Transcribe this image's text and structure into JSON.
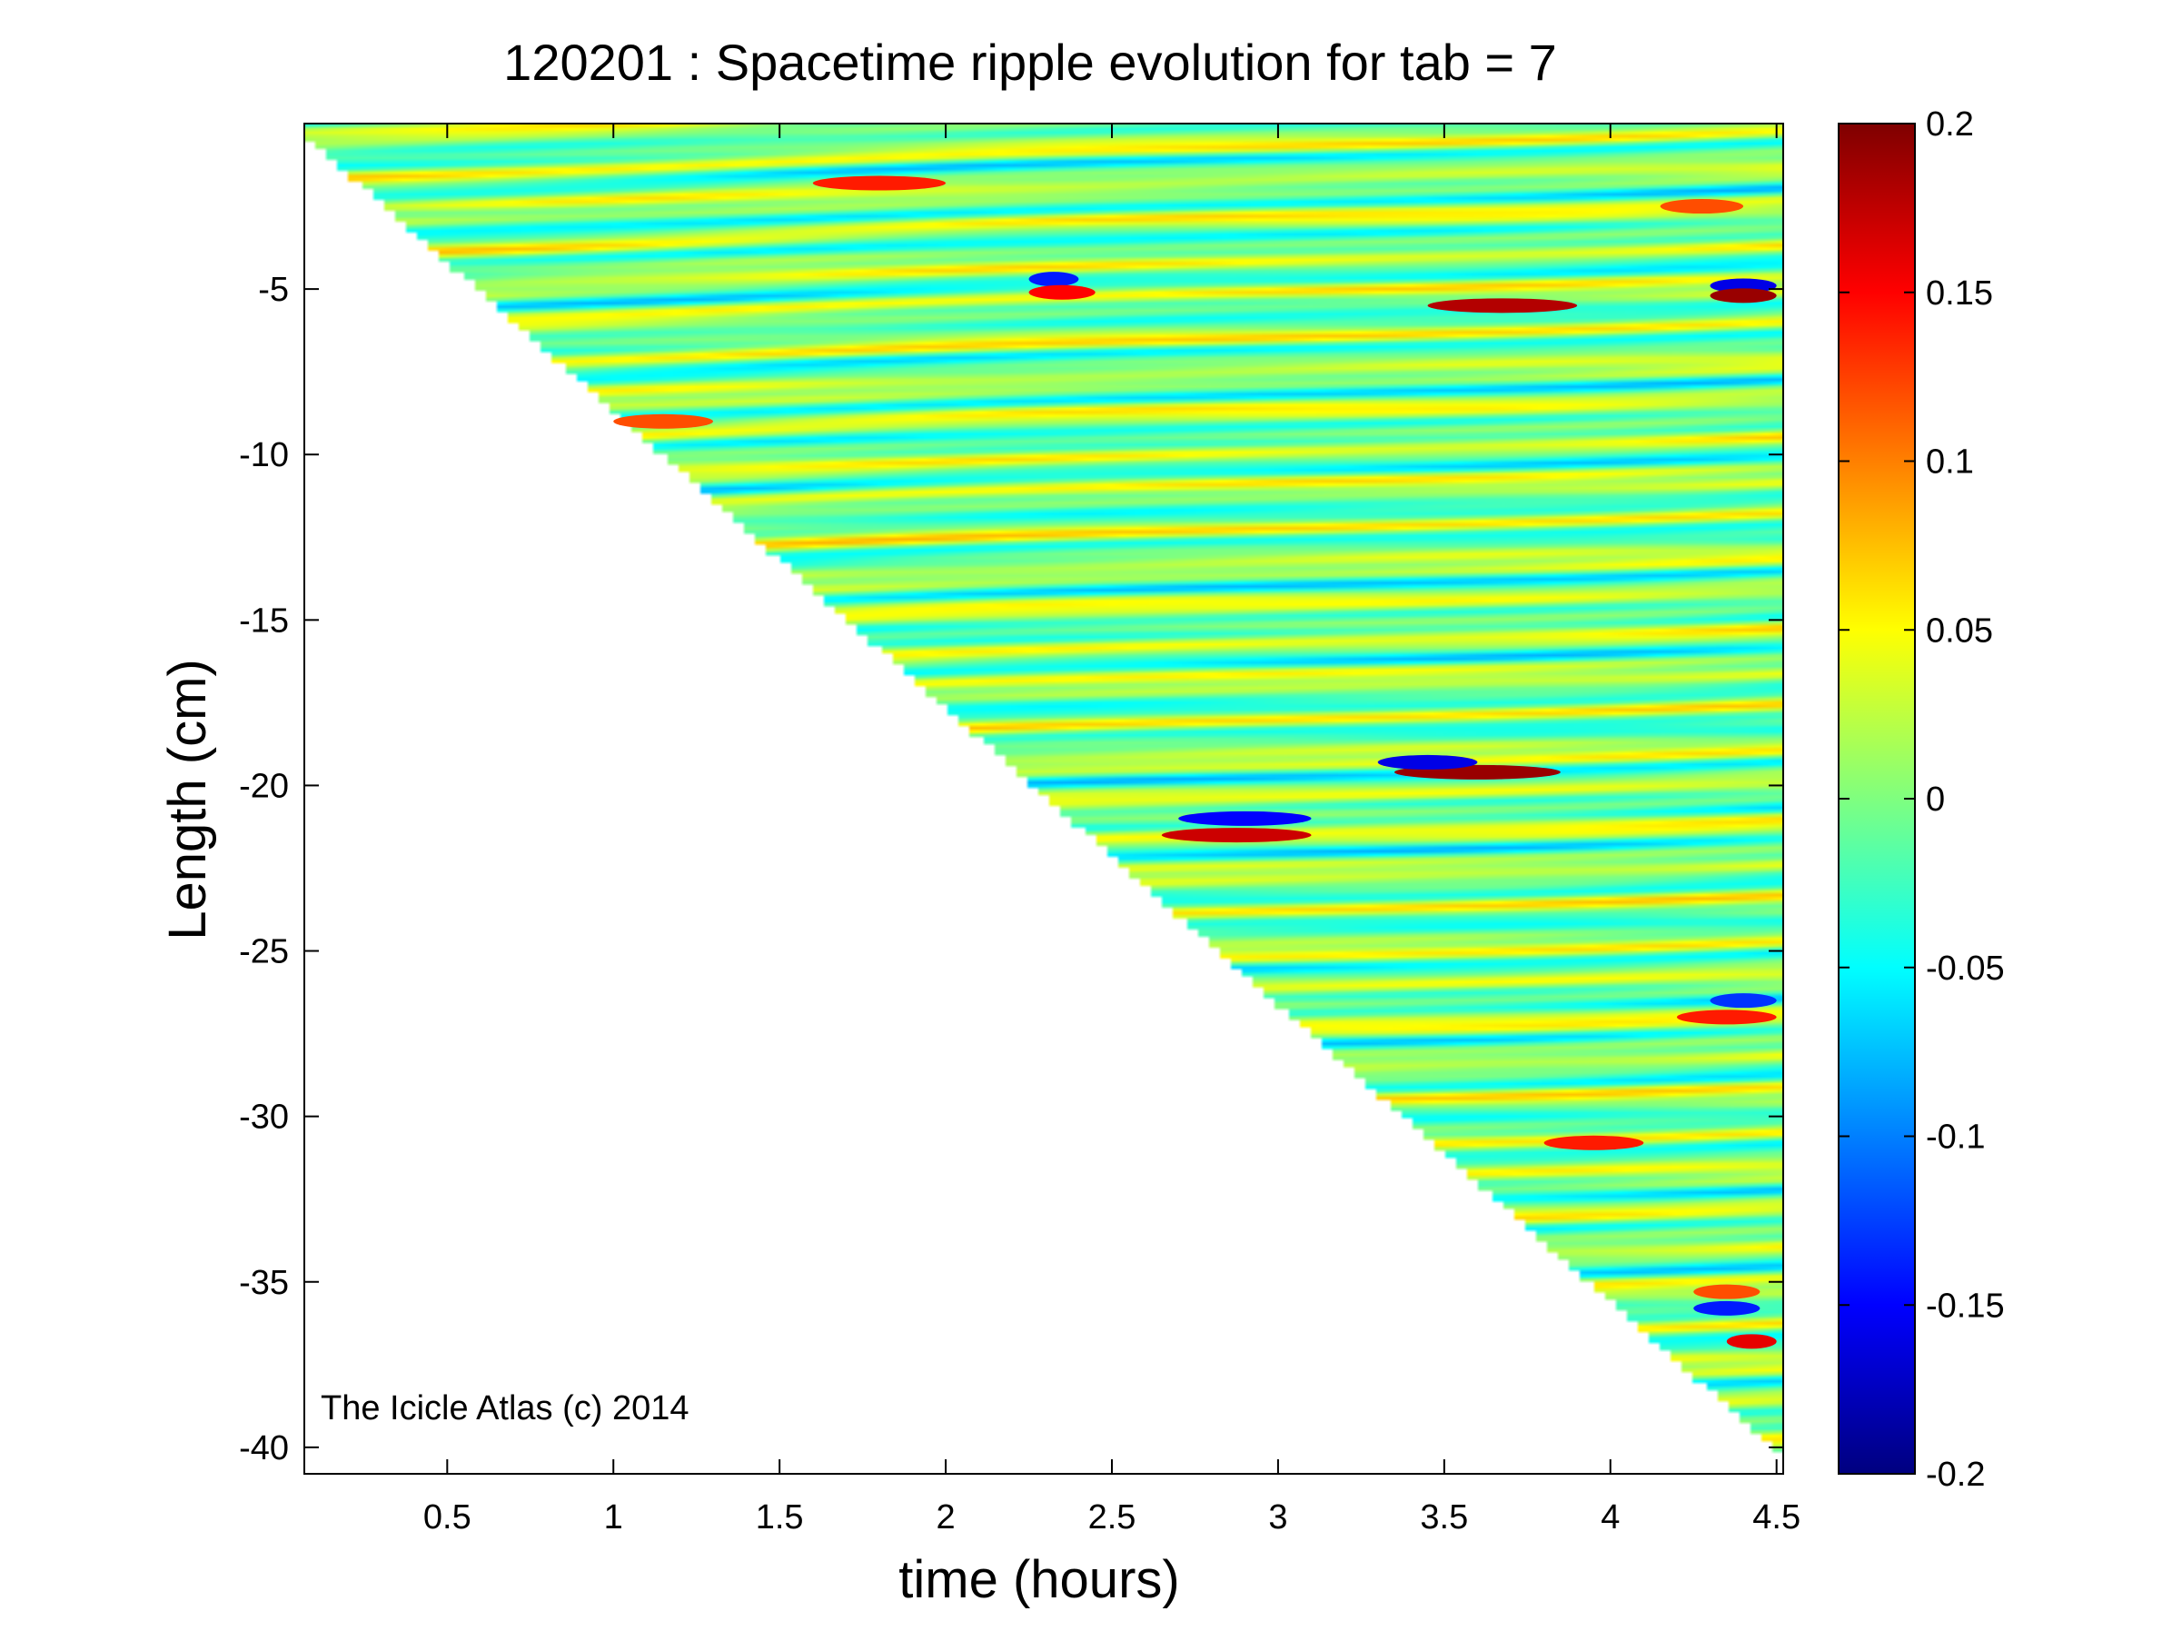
{
  "chart_data": {
    "type": "heatmap",
    "title": "120201 : Spacetime ripple evolution for tab = 7",
    "xlabel": "time (hours)",
    "ylabel": "Length (cm)",
    "xlim": [
      0.07,
      4.52
    ],
    "ylim": [
      -40.8,
      0.0
    ],
    "x_ticks": [
      0.5,
      1,
      1.5,
      2,
      2.5,
      3,
      3.5,
      4,
      4.5
    ],
    "x_tick_labels": [
      "0.5",
      "1",
      "1.5",
      "2",
      "2.5",
      "3",
      "3.5",
      "4",
      "4.5"
    ],
    "y_ticks": [
      -5,
      -10,
      -15,
      -20,
      -25,
      -30,
      -35,
      -40
    ],
    "y_tick_labels": [
      "-5",
      "-10",
      "-15",
      "-20",
      "-25",
      "-30",
      "-35",
      "-40"
    ],
    "colormap": "jet",
    "color_range": [
      -0.2,
      0.2
    ],
    "colorbar_ticks": [
      0.2,
      0.15,
      0.1,
      0.05,
      0,
      -0.05,
      -0.1,
      -0.15,
      -0.2
    ],
    "colorbar_tick_labels": [
      "0.2",
      "0.15",
      "0.1",
      "0.05",
      "0",
      "-0.05",
      "-0.1",
      "-0.15",
      "-0.2"
    ],
    "grid": false,
    "data_boundary": {
      "description_points": [
        [
          0.07,
          -0.5
        ],
        [
          4.45,
          -39.8
        ]
      ]
    },
    "features": [
      {
        "t_start": 1.6,
        "t_end": 2.0,
        "length": -1.8,
        "value": 0.14
      },
      {
        "t_start": 2.25,
        "t_end": 2.4,
        "length": -4.7,
        "value": -0.14
      },
      {
        "t_start": 2.25,
        "t_end": 2.45,
        "length": -5.1,
        "value": 0.15
      },
      {
        "t_start": 3.45,
        "t_end": 3.9,
        "length": -5.5,
        "value": 0.18
      },
      {
        "t_start": 4.3,
        "t_end": 4.5,
        "length": -4.9,
        "value": -0.16
      },
      {
        "t_start": 4.3,
        "t_end": 4.5,
        "length": -5.2,
        "value": 0.19
      },
      {
        "t_start": 4.15,
        "t_end": 4.4,
        "length": -2.5,
        "value": 0.12
      },
      {
        "t_start": 1.0,
        "t_end": 1.3,
        "length": -9.0,
        "value": 0.12
      },
      {
        "t_start": 3.35,
        "t_end": 3.85,
        "length": -19.6,
        "value": 0.19
      },
      {
        "t_start": 3.3,
        "t_end": 3.6,
        "length": -19.3,
        "value": -0.16
      },
      {
        "t_start": 2.65,
        "t_end": 3.1,
        "length": -21.5,
        "value": 0.17
      },
      {
        "t_start": 2.7,
        "t_end": 3.1,
        "length": -21.0,
        "value": -0.15
      },
      {
        "t_start": 4.2,
        "t_end": 4.5,
        "length": -27.0,
        "value": 0.14
      },
      {
        "t_start": 4.3,
        "t_end": 4.5,
        "length": -26.5,
        "value": -0.13
      },
      {
        "t_start": 3.8,
        "t_end": 4.1,
        "length": -30.8,
        "value": 0.14
      },
      {
        "t_start": 4.35,
        "t_end": 4.5,
        "length": -36.8,
        "value": 0.16
      },
      {
        "t_start": 4.25,
        "t_end": 4.45,
        "length": -35.8,
        "value": -0.14
      },
      {
        "t_start": 4.25,
        "t_end": 4.45,
        "length": -35.3,
        "value": 0.12
      }
    ],
    "annotation": "The Icicle Atlas (c) 2014"
  }
}
